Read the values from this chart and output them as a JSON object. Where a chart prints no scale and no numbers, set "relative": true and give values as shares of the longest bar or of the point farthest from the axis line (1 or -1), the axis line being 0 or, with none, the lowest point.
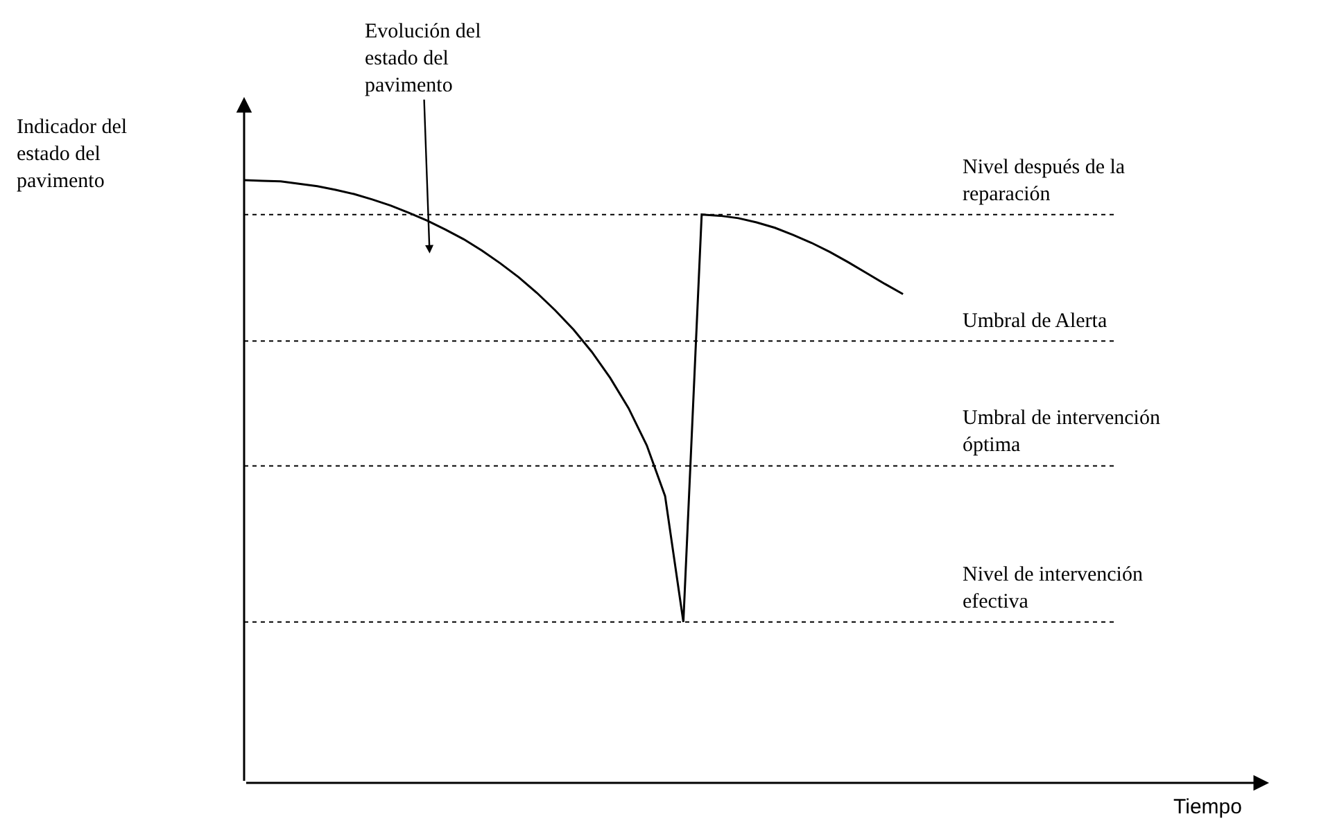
{
  "chart_data": {
    "type": "line",
    "relative": true,
    "xlabel": "Tiempo",
    "categories": [
      null,
      null,
      null,
      null,
      null,
      null,
      null,
      null,
      null,
      null,
      null,
      null,
      null,
      null,
      null,
      null,
      null,
      null,
      null,
      null,
      null,
      null,
      null,
      null,
      null,
      null,
      null,
      null,
      null,
      null,
      null,
      null,
      null,
      null,
      null,
      null,
      null,
      null,
      null,
      null,
      null,
      null,
      null,
      null,
      null,
      null,
      null,
      null,
      null,
      null,
      null,
      null,
      null,
      null,
      null,
      null
    ],
    "series": [
      {
        "color": "#000000",
        "values": [
          1.0,
          0.999,
          0.998,
          0.994,
          0.99,
          0.984,
          0.977,
          0.968,
          0.958,
          0.946,
          0.933,
          0.918,
          0.902,
          0.883,
          0.862,
          0.839,
          0.813,
          0.784,
          0.752,
          0.715,
          0.672,
          0.622,
          0.56,
          0.476,
          0.267,
          0.943,
          0.941,
          0.937,
          0.93,
          0.921,
          0.909,
          0.896,
          0.881,
          0.864,
          0.846,
          0.828,
          0.811,
          null,
          null,
          null,
          null,
          null,
          null,
          null,
          null,
          null,
          null,
          null,
          null,
          null,
          null,
          null,
          null,
          null,
          null,
          null
        ]
      }
    ],
    "ref_lines": [
      {
        "axis": "y",
        "value": 0.943,
        "label": "Nivel después de la reparación",
        "color": "#000000",
        "line_style": "dotted"
      },
      {
        "axis": "y",
        "value": 0.733,
        "label": "Umbral de Alerta",
        "color": "#000000",
        "line_style": "dotted"
      },
      {
        "axis": "y",
        "value": 0.526,
        "label": "Umbral de intervención óptima",
        "color": "#000000",
        "line_style": "dotted"
      },
      {
        "axis": "y",
        "value": 0.267,
        "label": "Nivel de intervención efectiva",
        "color": "#000000",
        "line_style": "dotted"
      }
    ],
    "annotations": [
      "Evolución del estado del pavimento",
      "Indicador del estado del pavimento"
    ],
    "marker": "none",
    "line_style": "solid"
  }
}
